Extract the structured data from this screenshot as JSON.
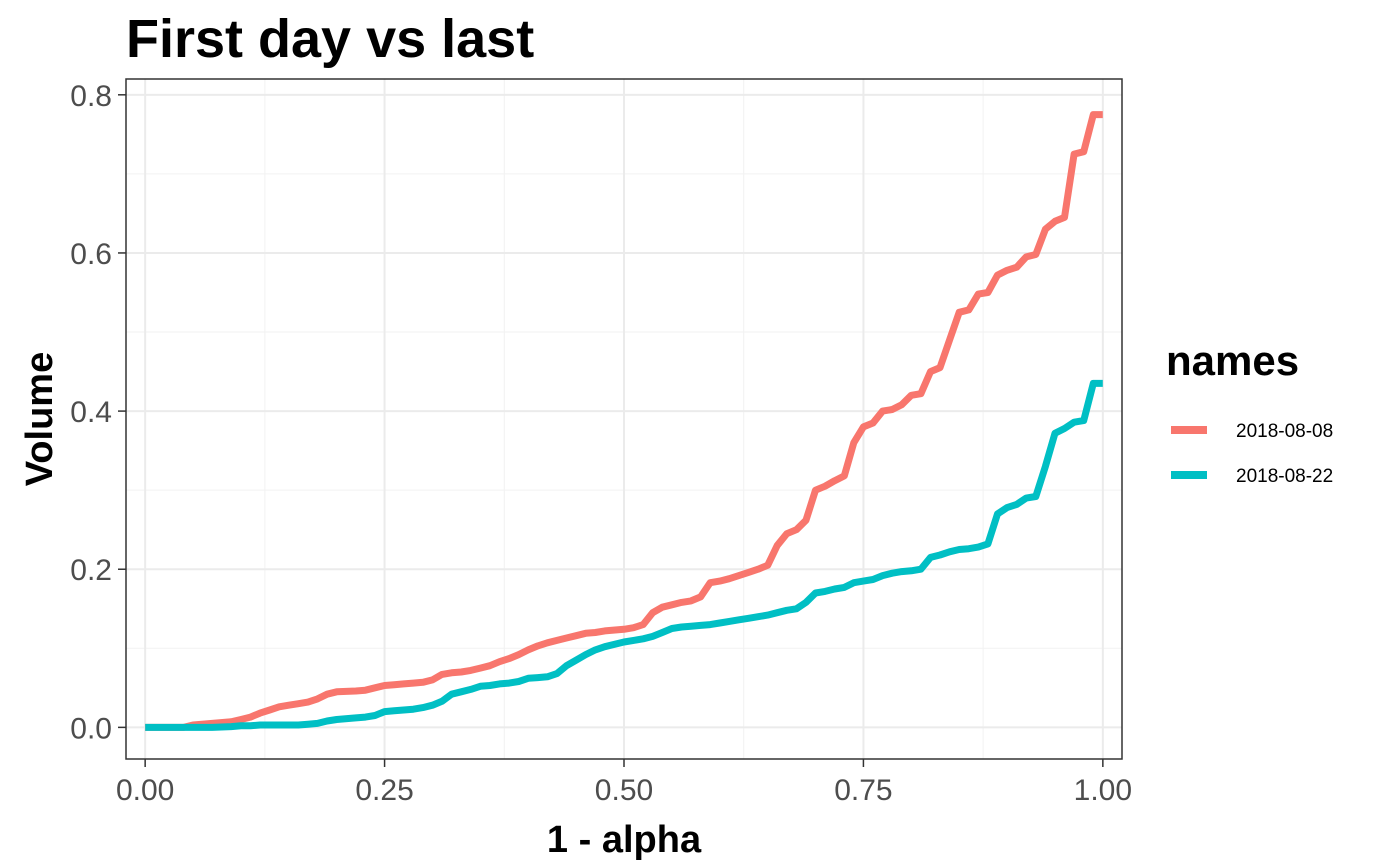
{
  "chart_data": {
    "type": "line",
    "title": "First day vs last",
    "xlabel": "1 - alpha",
    "ylabel": "Volume",
    "xlim": [
      -0.02,
      1.02
    ],
    "ylim": [
      -0.04,
      0.82
    ],
    "x_ticks": [
      0.0,
      0.25,
      0.5,
      0.75,
      1.0
    ],
    "x_tick_labels": [
      "0.00",
      "0.25",
      "0.50",
      "0.75",
      "1.00"
    ],
    "y_ticks": [
      0.0,
      0.2,
      0.4,
      0.6,
      0.8
    ],
    "y_tick_labels": [
      "0.0",
      "0.2",
      "0.4",
      "0.6",
      "0.8"
    ],
    "grid": true,
    "theme": "bw",
    "legend": {
      "title": "names",
      "position": "right"
    },
    "series": [
      {
        "name": "2018-08-08",
        "color": "#F8766D",
        "x": [
          0.0,
          0.02,
          0.04,
          0.05,
          0.07,
          0.09,
          0.1,
          0.11,
          0.12,
          0.13,
          0.14,
          0.15,
          0.16,
          0.17,
          0.18,
          0.19,
          0.2,
          0.22,
          0.23,
          0.24,
          0.25,
          0.26,
          0.27,
          0.28,
          0.29,
          0.3,
          0.31,
          0.32,
          0.33,
          0.34,
          0.35,
          0.36,
          0.37,
          0.38,
          0.39,
          0.4,
          0.41,
          0.42,
          0.43,
          0.44,
          0.45,
          0.46,
          0.47,
          0.48,
          0.5,
          0.51,
          0.52,
          0.53,
          0.54,
          0.55,
          0.56,
          0.57,
          0.58,
          0.59,
          0.6,
          0.61,
          0.62,
          0.63,
          0.64,
          0.65,
          0.66,
          0.67,
          0.68,
          0.69,
          0.7,
          0.71,
          0.72,
          0.73,
          0.74,
          0.75,
          0.76,
          0.77,
          0.78,
          0.79,
          0.8,
          0.81,
          0.82,
          0.83,
          0.84,
          0.85,
          0.86,
          0.87,
          0.88,
          0.89,
          0.9,
          0.91,
          0.92,
          0.93,
          0.94,
          0.95,
          0.96,
          0.97,
          0.98,
          0.99,
          1.0
        ],
        "values": [
          0.0,
          0.0,
          0.0,
          0.003,
          0.005,
          0.007,
          0.01,
          0.013,
          0.018,
          0.022,
          0.026,
          0.028,
          0.03,
          0.032,
          0.036,
          0.042,
          0.045,
          0.046,
          0.047,
          0.05,
          0.053,
          0.054,
          0.055,
          0.056,
          0.057,
          0.06,
          0.067,
          0.069,
          0.07,
          0.072,
          0.075,
          0.078,
          0.083,
          0.087,
          0.092,
          0.098,
          0.103,
          0.107,
          0.11,
          0.113,
          0.116,
          0.119,
          0.12,
          0.122,
          0.124,
          0.126,
          0.13,
          0.145,
          0.152,
          0.155,
          0.158,
          0.16,
          0.165,
          0.183,
          0.185,
          0.188,
          0.192,
          0.196,
          0.2,
          0.205,
          0.23,
          0.245,
          0.25,
          0.262,
          0.3,
          0.305,
          0.312,
          0.318,
          0.36,
          0.38,
          0.385,
          0.4,
          0.402,
          0.408,
          0.42,
          0.422,
          0.45,
          0.455,
          0.49,
          0.525,
          0.528,
          0.548,
          0.55,
          0.572,
          0.578,
          0.582,
          0.595,
          0.598,
          0.63,
          0.64,
          0.645,
          0.725,
          0.728,
          0.775,
          0.775
        ]
      },
      {
        "name": "2018-08-22",
        "color": "#00BFC4",
        "x": [
          0.0,
          0.02,
          0.04,
          0.05,
          0.07,
          0.09,
          0.1,
          0.11,
          0.12,
          0.13,
          0.14,
          0.15,
          0.16,
          0.17,
          0.18,
          0.19,
          0.2,
          0.22,
          0.23,
          0.24,
          0.25,
          0.26,
          0.27,
          0.28,
          0.29,
          0.3,
          0.31,
          0.32,
          0.33,
          0.34,
          0.35,
          0.36,
          0.37,
          0.38,
          0.39,
          0.4,
          0.41,
          0.42,
          0.43,
          0.44,
          0.45,
          0.46,
          0.47,
          0.48,
          0.5,
          0.51,
          0.52,
          0.53,
          0.54,
          0.55,
          0.56,
          0.57,
          0.58,
          0.59,
          0.6,
          0.61,
          0.62,
          0.63,
          0.64,
          0.65,
          0.66,
          0.67,
          0.68,
          0.69,
          0.7,
          0.71,
          0.72,
          0.73,
          0.74,
          0.75,
          0.76,
          0.77,
          0.78,
          0.79,
          0.8,
          0.81,
          0.82,
          0.83,
          0.84,
          0.85,
          0.86,
          0.87,
          0.88,
          0.89,
          0.9,
          0.91,
          0.92,
          0.93,
          0.94,
          0.95,
          0.96,
          0.97,
          0.98,
          0.99,
          1.0
        ],
        "values": [
          0.0,
          0.0,
          0.0,
          0.0,
          0.0,
          0.001,
          0.002,
          0.002,
          0.003,
          0.003,
          0.003,
          0.003,
          0.003,
          0.004,
          0.005,
          0.008,
          0.01,
          0.012,
          0.013,
          0.015,
          0.02,
          0.021,
          0.022,
          0.023,
          0.025,
          0.028,
          0.033,
          0.042,
          0.045,
          0.048,
          0.052,
          0.053,
          0.055,
          0.056,
          0.058,
          0.062,
          0.063,
          0.064,
          0.068,
          0.078,
          0.085,
          0.092,
          0.098,
          0.102,
          0.108,
          0.11,
          0.112,
          0.115,
          0.12,
          0.125,
          0.127,
          0.128,
          0.129,
          0.13,
          0.132,
          0.134,
          0.136,
          0.138,
          0.14,
          0.142,
          0.145,
          0.148,
          0.15,
          0.158,
          0.17,
          0.172,
          0.175,
          0.177,
          0.183,
          0.185,
          0.187,
          0.192,
          0.195,
          0.197,
          0.198,
          0.2,
          0.215,
          0.218,
          0.222,
          0.225,
          0.226,
          0.228,
          0.232,
          0.27,
          0.278,
          0.282,
          0.29,
          0.292,
          0.33,
          0.372,
          0.378,
          0.386,
          0.388,
          0.435,
          0.435
        ]
      }
    ]
  }
}
